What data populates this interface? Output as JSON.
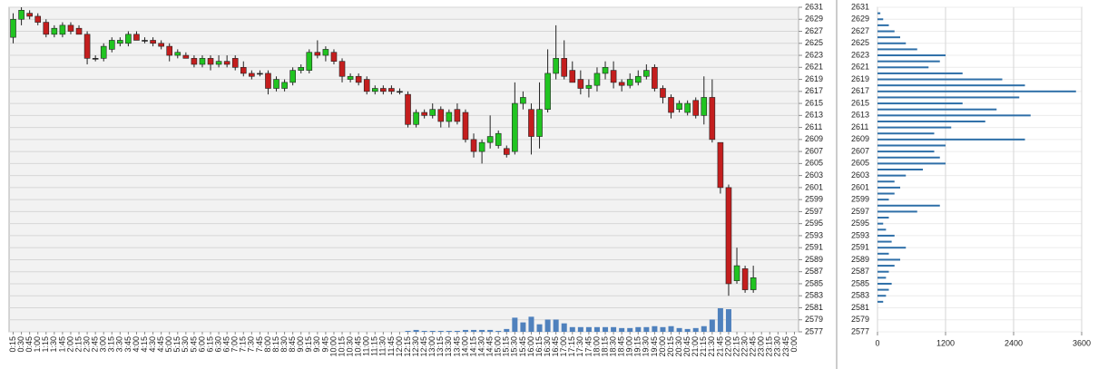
{
  "chart_data": [
    {
      "type": "candlestick",
      "categories": [
        "0:15",
        "0:30",
        "0:45",
        "1:00",
        "1:15",
        "1:30",
        "1:45",
        "2:00",
        "2:15",
        "2:30",
        "2:45",
        "3:00",
        "3:15",
        "3:30",
        "3:45",
        "4:00",
        "4:15",
        "4:30",
        "4:45",
        "5:00",
        "5:15",
        "5:30",
        "5:45",
        "6:00",
        "6:15",
        "6:30",
        "6:45",
        "7:00",
        "7:15",
        "7:30",
        "7:45",
        "8:00",
        "8:15",
        "8:30",
        "8:45",
        "9:00",
        "9:15",
        "9:30",
        "9:45",
        "10:00",
        "10:15",
        "10:30",
        "10:45",
        "11:00",
        "11:15",
        "11:30",
        "11:45",
        "12:00",
        "12:15",
        "12:30",
        "12:45",
        "13:00",
        "13:15",
        "13:30",
        "13:45",
        "14:00",
        "14:15",
        "14:30",
        "14:45",
        "15:00",
        "15:15",
        "15:30",
        "15:45",
        "16:00",
        "16:15",
        "16:30",
        "16:45",
        "17:00",
        "17:15",
        "17:30",
        "17:45",
        "18:00",
        "18:15",
        "18:30",
        "18:45",
        "19:00",
        "19:15",
        "19:30",
        "19:45",
        "20:00",
        "20:15",
        "20:30",
        "20:45",
        "21:00",
        "21:15",
        "21:30",
        "21:45",
        "22:00",
        "22:15",
        "22:30",
        "22:45",
        "23:00",
        "23:15",
        "23:30",
        "23:45",
        "0:00"
      ],
      "open": [
        2626,
        2629,
        2630,
        2629.5,
        2628.5,
        2626.5,
        2626.5,
        2628,
        2627.5,
        2626.5,
        2622.5,
        2622.5,
        2624,
        2625,
        2625,
        2626.5,
        2625.5,
        2625.5,
        2625,
        2624.5,
        2623,
        2623,
        2622.5,
        2621.5,
        2622.5,
        2621.5,
        2622,
        2622.5,
        2621,
        2620,
        2620,
        2620,
        2617.5,
        2617.5,
        2618.5,
        2620.5,
        2620.5,
        2623.5,
        2623,
        2623.5,
        2622,
        2619,
        2619.5,
        2619,
        2617,
        2617.5,
        2617.5,
        2617,
        2616.5,
        2611.5,
        2613.5,
        2613,
        2614,
        2612,
        2614,
        2613.5,
        2609,
        2607,
        2608.5,
        2608,
        2607.5,
        2607,
        2615,
        2614,
        2609.5,
        2614,
        2620,
        2622.5,
        2620.5,
        2619,
        2617.5,
        2618,
        2620,
        2620.5,
        2618.5,
        2618,
        2618.5,
        2619.5,
        2621,
        2617.5,
        2616,
        2614,
        2613.5,
        2615.5,
        2613,
        2616,
        2608.5,
        2601,
        2585.5,
        2587.5,
        2584,
        null,
        null,
        null,
        null,
        null
      ],
      "high": [
        2630,
        2631,
        2630.5,
        2630,
        2629,
        2628,
        2628.5,
        2628.5,
        2628,
        2627,
        2623,
        2625,
        2626,
        2626,
        2627,
        2627,
        2626,
        2626,
        2625.5,
        2625,
        2624,
        2623.5,
        2623,
        2623,
        2623,
        2623,
        2623,
        2623,
        2622,
        2620.5,
        2620.5,
        2620.5,
        2619.5,
        2619,
        2621,
        2621.5,
        2624,
        2625.5,
        2624.5,
        2624,
        2622.5,
        2620,
        2620,
        2619.5,
        2618,
        2618,
        2618,
        2617.5,
        2617,
        2614,
        2614,
        2615,
        2614.5,
        2614,
        2615,
        2614,
        2610,
        2609,
        2613,
        2610.5,
        2608,
        2618.5,
        2617,
        2615,
        2618.5,
        2624,
        2628,
        2625.5,
        2622,
        2620.5,
        2619,
        2621,
        2622,
        2622,
        2619,
        2620,
        2620.5,
        2621.5,
        2621.5,
        2618,
        2616.5,
        2615.5,
        2615.5,
        2616,
        2619.5,
        2619,
        2608.5,
        2601.5,
        2591,
        2588,
        2588,
        null,
        null,
        null,
        null,
        null
      ],
      "low": [
        2625,
        2628,
        2629,
        2628,
        2626,
        2626,
        2626,
        2626.5,
        2626.5,
        2621.5,
        2622,
        2622,
        2623.5,
        2624.5,
        2624.5,
        2625.5,
        2625,
        2624.5,
        2624,
        2622,
        2622.5,
        2622.5,
        2621,
        2621,
        2620.5,
        2621,
        2621,
        2620.5,
        2619.5,
        2619,
        2619.5,
        2616.5,
        2617,
        2617,
        2618,
        2620,
        2620,
        2622.5,
        2622,
        2621.5,
        2618.5,
        2618.5,
        2618,
        2616.5,
        2616.5,
        2616.5,
        2616.5,
        2616.5,
        2611,
        2611,
        2612.5,
        2612.5,
        2611,
        2611,
        2611.5,
        2608.5,
        2606,
        2605,
        2607.5,
        2607.5,
        2606,
        2606.5,
        2614,
        2606.5,
        2607.5,
        2613.5,
        2619,
        2619,
        2618.5,
        2616.5,
        2616,
        2617,
        2619,
        2617.5,
        2617,
        2617.5,
        2618,
        2619,
        2617,
        2615,
        2612.5,
        2613.5,
        2613,
        2612.5,
        2611.5,
        2608.5,
        2600,
        2583,
        2585,
        2583.5,
        2583.5,
        null,
        null,
        null,
        null,
        null
      ],
      "close": [
        2629,
        2630.5,
        2629.5,
        2628.5,
        2626.5,
        2627.5,
        2628,
        2627,
        2626.5,
        2622.5,
        2622.5,
        2624.5,
        2625.5,
        2625.5,
        2626.5,
        2625.5,
        2625.5,
        2625,
        2624.5,
        2623,
        2623.5,
        2622.5,
        2621.5,
        2622.5,
        2621.5,
        2622,
        2621.5,
        2621,
        2620,
        2619.5,
        2620,
        2617.5,
        2619,
        2618.5,
        2620.5,
        2621,
        2623.5,
        2623,
        2624,
        2622,
        2619.5,
        2619.5,
        2618.5,
        2617,
        2617.5,
        2617,
        2617,
        2617,
        2611.5,
        2613.5,
        2613,
        2614,
        2612,
        2613.5,
        2612,
        2609,
        2607,
        2608.5,
        2609.5,
        2610,
        2606.5,
        2615,
        2616,
        2609.5,
        2614,
        2620,
        2622.5,
        2619.5,
        2618.5,
        2617.5,
        2618,
        2620,
        2621,
        2618.5,
        2618,
        2619,
        2619.5,
        2620.5,
        2617.5,
        2616,
        2613.5,
        2615,
        2615,
        2613,
        2616,
        2609,
        2601,
        2585,
        2588,
        2584,
        2586,
        null,
        null,
        null,
        null,
        null
      ],
      "volume": [
        0,
        0,
        0,
        0,
        0,
        0,
        0,
        0,
        0,
        0,
        0,
        0,
        0,
        0,
        0,
        0,
        0,
        0,
        0,
        0,
        0,
        0,
        0,
        0,
        0,
        0,
        0,
        0,
        0,
        0,
        0,
        0,
        0,
        0,
        0,
        0,
        0,
        0,
        0,
        0,
        0,
        0,
        0,
        0,
        0,
        0,
        0,
        0,
        1,
        2,
        1,
        1,
        1,
        1,
        1,
        2,
        2,
        2,
        2,
        1,
        3,
        15,
        10,
        16,
        8,
        13,
        13,
        9,
        5,
        5,
        5,
        5,
        5,
        5,
        4,
        4,
        5,
        5,
        6,
        5,
        6,
        4,
        3,
        4,
        6,
        13,
        25,
        24,
        0,
        0,
        0,
        null,
        null,
        null,
        null,
        null
      ],
      "up_color": "#21c421",
      "down_color": "#c41e1e",
      "volume_color": "#4f81bd",
      "ylim": [
        2577,
        2631
      ],
      "yticks": [
        2577,
        2579,
        2581,
        2583,
        2585,
        2587,
        2589,
        2591,
        2593,
        2595,
        2597,
        2599,
        2601,
        2603,
        2605,
        2607,
        2609,
        2611,
        2613,
        2615,
        2617,
        2619,
        2621,
        2623,
        2625,
        2627,
        2629,
        2631
      ],
      "grid": true
    },
    {
      "type": "bar",
      "orientation": "horizontal",
      "y": [
        2630,
        2629,
        2628,
        2627,
        2626,
        2625,
        2624,
        2623,
        2622,
        2621,
        2620,
        2619,
        2618,
        2617,
        2616,
        2615,
        2614,
        2613,
        2612,
        2611,
        2610,
        2609,
        2608,
        2607,
        2606,
        2605,
        2604,
        2603,
        2602,
        2601,
        2600,
        2599,
        2598,
        2597,
        2596,
        2595,
        2594,
        2593,
        2592,
        2591,
        2590,
        2589,
        2588,
        2587,
        2586,
        2585,
        2584,
        2583,
        2582
      ],
      "values": [
        50,
        100,
        200,
        300,
        400,
        500,
        700,
        1200,
        1100,
        900,
        1500,
        2200,
        2600,
        3500,
        2500,
        1500,
        2100,
        2700,
        1900,
        1300,
        1000,
        2600,
        1200,
        1000,
        1100,
        1200,
        800,
        500,
        300,
        400,
        300,
        200,
        1100,
        700,
        200,
        100,
        150,
        300,
        250,
        500,
        200,
        400,
        300,
        200,
        150,
        250,
        200,
        150,
        100
      ],
      "color": "#2e6fa8",
      "xlim": [
        0,
        3600
      ],
      "xticks": [
        0,
        1200,
        2400,
        3600
      ],
      "ylim": [
        2577,
        2631
      ],
      "yticks": [
        2577,
        2579,
        2581,
        2583,
        2585,
        2587,
        2589,
        2591,
        2593,
        2595,
        2597,
        2599,
        2601,
        2603,
        2605,
        2607,
        2609,
        2611,
        2613,
        2615,
        2617,
        2619,
        2621,
        2623,
        2625,
        2627,
        2629,
        2631
      ],
      "grid": true
    }
  ]
}
